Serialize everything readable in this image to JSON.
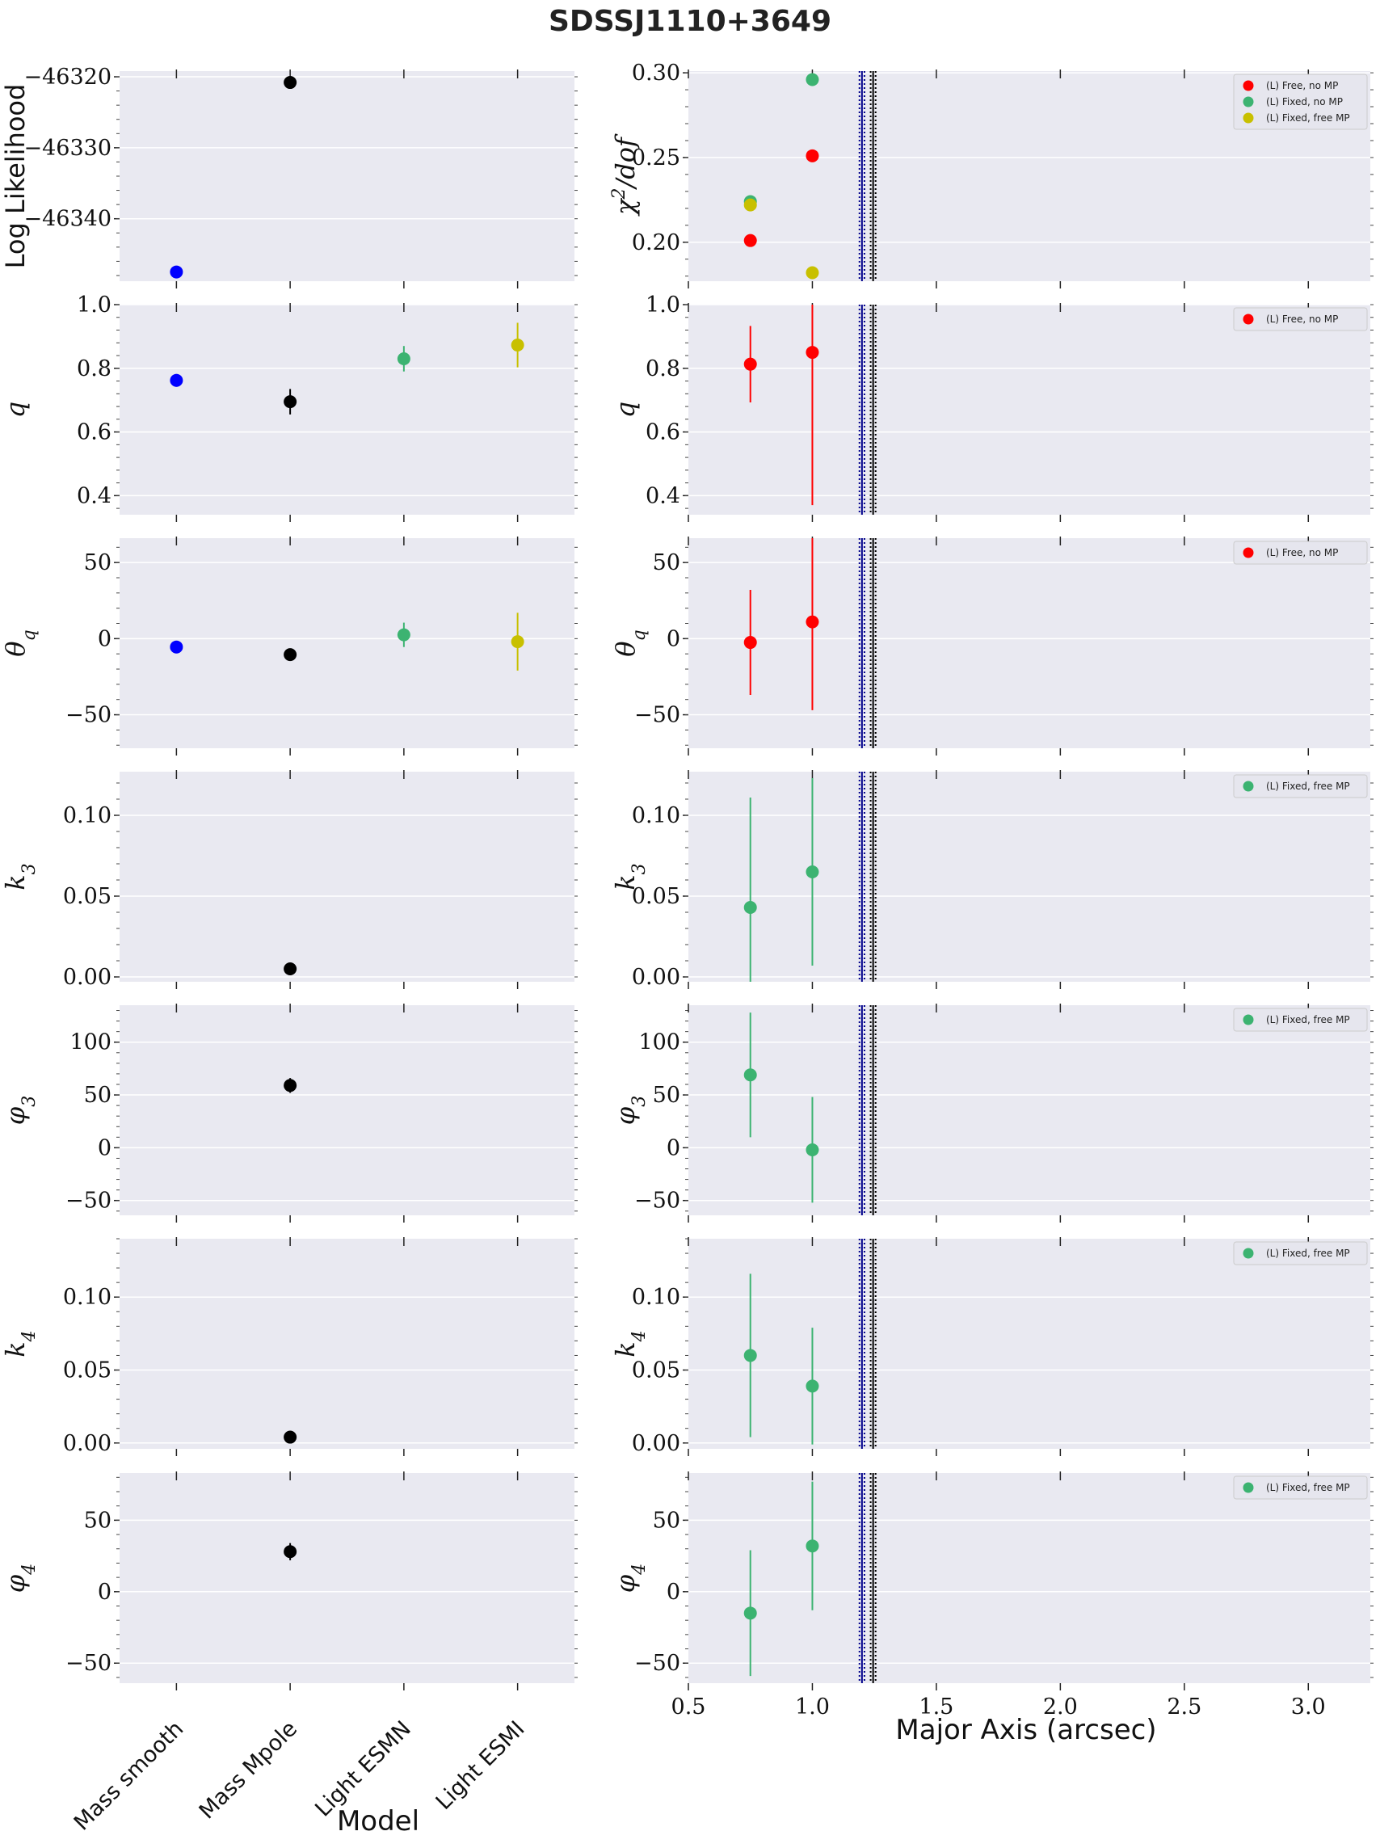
{
  "figure": {
    "title": "SDSSJ1110+3649",
    "left_xlabel": "Model",
    "right_xlabel": "Major Axis (arcsec)"
  },
  "colors": {
    "mass_smooth": "#0000ff",
    "mass_mpole": "#000000",
    "light_esmn": "#3cb371",
    "light_esmi": "#c8c000",
    "free_no_mp": "#ff0000",
    "fixed_no_mp": "#3cb371",
    "fixed_free_mp": "#c8c000",
    "vline_blue": "#00008b",
    "vline_black": "#000000",
    "panel_bg": "#e9e9f1",
    "grid": "#ffffff"
  },
  "chart_data": [
    {
      "type": "scatter",
      "panel": "left-0",
      "ylabel": "Log Likelihood",
      "categories": [
        "Mass smooth",
        "Mass Mpole",
        "Light ESMN",
        "Light ESMI"
      ],
      "ylim": [
        -46348.8,
        -46319.2
      ],
      "yticks": [
        -46320,
        -46330,
        -46340
      ],
      "yticklabels": [
        "−46320",
        "−46330",
        "−46340"
      ],
      "series": [
        {
          "key": "mass_smooth",
          "points": [
            {
              "x": 0,
              "y": -46347.5,
              "err": 0
            }
          ]
        },
        {
          "key": "mass_mpole",
          "points": [
            {
              "x": 1,
              "y": -46320.8,
              "err": 0
            }
          ]
        }
      ]
    },
    {
      "type": "scatter",
      "panel": "left-1",
      "ylabel": "q",
      "categories": [
        "Mass smooth",
        "Mass Mpole",
        "Light ESMN",
        "Light ESMI"
      ],
      "ylim": [
        0.34,
        1.0
      ],
      "yticks": [
        0.4,
        0.6,
        0.8,
        1.0
      ],
      "yticklabels": [
        "0.4",
        "0.6",
        "0.8",
        "1.0"
      ],
      "series": [
        {
          "key": "mass_smooth",
          "points": [
            {
              "x": 0,
              "y": 0.762,
              "err": 0.02
            }
          ]
        },
        {
          "key": "mass_mpole",
          "points": [
            {
              "x": 1,
              "y": 0.695,
              "err": 0.04
            }
          ]
        },
        {
          "key": "light_esmn",
          "points": [
            {
              "x": 2,
              "y": 0.83,
              "err": 0.04
            }
          ]
        },
        {
          "key": "light_esmi",
          "points": [
            {
              "x": 3,
              "y": 0.873,
              "err": 0.07
            }
          ]
        }
      ]
    },
    {
      "type": "scatter",
      "panel": "left-2",
      "ylabel": "θq",
      "categories": [
        "Mass smooth",
        "Mass Mpole",
        "Light ESMN",
        "Light ESMI"
      ],
      "ylim": [
        -72,
        66
      ],
      "yticks": [
        50,
        0,
        -50
      ],
      "yticklabels": [
        "50",
        "0",
        "−50"
      ],
      "series": [
        {
          "key": "mass_smooth",
          "points": [
            {
              "x": 0,
              "y": -5.5,
              "err": 2
            }
          ]
        },
        {
          "key": "mass_mpole",
          "points": [
            {
              "x": 1,
              "y": -10.5,
              "err": 2
            }
          ]
        },
        {
          "key": "light_esmn",
          "points": [
            {
              "x": 2,
              "y": 2.5,
              "err": 8
            }
          ]
        },
        {
          "key": "light_esmi",
          "points": [
            {
              "x": 3,
              "y": -2,
              "err": 19
            }
          ]
        }
      ]
    },
    {
      "type": "scatter",
      "panel": "left-3",
      "ylabel": "k3",
      "categories": [
        "Mass smooth",
        "Mass Mpole",
        "Light ESMN",
        "Light ESMI"
      ],
      "ylim": [
        -0.003,
        0.127
      ],
      "yticks": [
        0.0,
        0.05,
        0.1
      ],
      "yticklabels": [
        "0.00",
        "0.05",
        "0.10"
      ],
      "series": [
        {
          "key": "mass_mpole",
          "points": [
            {
              "x": 1,
              "y": 0.005,
              "err": 0.002
            }
          ]
        }
      ]
    },
    {
      "type": "scatter",
      "panel": "left-4",
      "ylabel": "φ3",
      "categories": [
        "Mass smooth",
        "Mass Mpole",
        "Light ESMN",
        "Light ESMI"
      ],
      "ylim": [
        -64,
        135
      ],
      "yticks": [
        100,
        50,
        0,
        -50
      ],
      "yticklabels": [
        "100",
        "50",
        "0",
        "−50"
      ],
      "series": [
        {
          "key": "mass_mpole",
          "points": [
            {
              "x": 1,
              "y": 59,
              "err": 7
            }
          ]
        }
      ]
    },
    {
      "type": "scatter",
      "panel": "left-5",
      "ylabel": "k4",
      "categories": [
        "Mass smooth",
        "Mass Mpole",
        "Light ESMN",
        "Light ESMI"
      ],
      "ylim": [
        -0.004,
        0.14
      ],
      "yticks": [
        0.0,
        0.05,
        0.1
      ],
      "yticklabels": [
        "0.00",
        "0.05",
        "0.10"
      ],
      "series": [
        {
          "key": "mass_mpole",
          "points": [
            {
              "x": 1,
              "y": 0.004,
              "err": 0.002
            }
          ]
        }
      ]
    },
    {
      "type": "scatter",
      "panel": "left-6",
      "ylabel": "φ4",
      "categories": [
        "Mass smooth",
        "Mass Mpole",
        "Light ESMN",
        "Light ESMI"
      ],
      "ylim": [
        -64,
        83
      ],
      "yticks": [
        50,
        0,
        -50
      ],
      "yticklabels": [
        "50",
        "0",
        "−50"
      ],
      "series": [
        {
          "key": "mass_mpole",
          "points": [
            {
              "x": 1,
              "y": 28,
              "err": 6
            }
          ]
        }
      ]
    },
    {
      "type": "scatter",
      "panel": "right-0",
      "ylabel": "χ²/dof",
      "xlim": [
        0.5,
        3.25
      ],
      "xticks": [
        0.5,
        1.0,
        1.5,
        2.0,
        2.5,
        3.0
      ],
      "xticklabels": [
        "0.5",
        "1.0",
        "1.5",
        "2.0",
        "2.5",
        "3.0"
      ],
      "ylim": [
        0.177,
        0.301
      ],
      "yticks": [
        0.2,
        0.25,
        0.3
      ],
      "yticklabels": [
        "0.20",
        "0.25",
        "0.30"
      ],
      "vlines": [
        {
          "x": 1.19,
          "color": "vline_blue",
          "style": "dotted"
        },
        {
          "x": 1.2,
          "color": "vline_blue",
          "style": "solid"
        },
        {
          "x": 1.21,
          "color": "vline_blue",
          "style": "dotted"
        },
        {
          "x": 1.235,
          "color": "vline_black",
          "style": "dotted"
        },
        {
          "x": 1.245,
          "color": "vline_black",
          "style": "solid"
        },
        {
          "x": 1.255,
          "color": "vline_black",
          "style": "dotted"
        }
      ],
      "legend_position": "top-right",
      "legend": [
        {
          "label": "(L) Free, no MP",
          "key": "free_no_mp"
        },
        {
          "label": "(L) Fixed, no MP",
          "key": "fixed_no_mp"
        },
        {
          "label": "(L) Fixed, free MP",
          "key": "fixed_free_mp"
        }
      ],
      "series": [
        {
          "key": "fixed_no_mp",
          "points": [
            {
              "x": 0.75,
              "y": 0.224,
              "err": 0
            },
            {
              "x": 1.0,
              "y": 0.296,
              "err": 0
            }
          ]
        },
        {
          "key": "fixed_free_mp",
          "points": [
            {
              "x": 0.75,
              "y": 0.222,
              "err": 0
            },
            {
              "x": 1.0,
              "y": 0.182,
              "err": 0
            }
          ]
        },
        {
          "key": "free_no_mp",
          "points": [
            {
              "x": 0.75,
              "y": 0.201,
              "err": 0
            },
            {
              "x": 1.0,
              "y": 0.251,
              "err": 0
            }
          ]
        }
      ]
    },
    {
      "type": "scatter",
      "panel": "right-1",
      "ylabel": "q",
      "xlim": [
        0.5,
        3.25
      ],
      "xticks": [
        0.5,
        1.0,
        1.5,
        2.0,
        2.5,
        3.0
      ],
      "xticklabels": [
        "0.5",
        "1.0",
        "1.5",
        "2.0",
        "2.5",
        "3.0"
      ],
      "ylim": [
        0.34,
        1.0
      ],
      "yticks": [
        0.4,
        0.6,
        0.8,
        1.0
      ],
      "yticklabels": [
        "0.4",
        "0.6",
        "0.8",
        "1.0"
      ],
      "vlines": [
        {
          "x": 1.19,
          "color": "vline_blue",
          "style": "dotted"
        },
        {
          "x": 1.2,
          "color": "vline_blue",
          "style": "solid"
        },
        {
          "x": 1.21,
          "color": "vline_blue",
          "style": "dotted"
        },
        {
          "x": 1.235,
          "color": "vline_black",
          "style": "dotted"
        },
        {
          "x": 1.245,
          "color": "vline_black",
          "style": "solid"
        },
        {
          "x": 1.255,
          "color": "vline_black",
          "style": "dotted"
        }
      ],
      "legend_position": "top-right",
      "legend": [
        {
          "label": "(L) Free, no MP",
          "key": "free_no_mp"
        }
      ],
      "series": [
        {
          "key": "free_no_mp",
          "points": [
            {
              "x": 0.75,
              "y": 0.813,
              "err": 0.12
            },
            {
              "x": 1.0,
              "y": 0.85,
              "err": 0.48
            }
          ]
        }
      ]
    },
    {
      "type": "scatter",
      "panel": "right-2",
      "ylabel": "θq",
      "xlim": [
        0.5,
        3.25
      ],
      "xticks": [
        0.5,
        1.0,
        1.5,
        2.0,
        2.5,
        3.0
      ],
      "xticklabels": [
        "0.5",
        "1.0",
        "1.5",
        "2.0",
        "2.5",
        "3.0"
      ],
      "ylim": [
        -72,
        66
      ],
      "yticks": [
        50,
        0,
        -50
      ],
      "yticklabels": [
        "50",
        "0",
        "−50"
      ],
      "vlines": [
        {
          "x": 1.19,
          "color": "vline_blue",
          "style": "dotted"
        },
        {
          "x": 1.2,
          "color": "vline_blue",
          "style": "solid"
        },
        {
          "x": 1.21,
          "color": "vline_blue",
          "style": "dotted"
        },
        {
          "x": 1.235,
          "color": "vline_black",
          "style": "dotted"
        },
        {
          "x": 1.245,
          "color": "vline_black",
          "style": "solid"
        },
        {
          "x": 1.255,
          "color": "vline_black",
          "style": "dotted"
        }
      ],
      "legend_position": "top-right",
      "legend": [
        {
          "label": "(L) Free, no MP",
          "key": "free_no_mp"
        }
      ],
      "series": [
        {
          "key": "free_no_mp",
          "points": [
            {
              "x": 0.75,
              "y": -2.5,
              "err": 34.5
            },
            {
              "x": 1.0,
              "y": 11,
              "err": 58
            }
          ]
        }
      ]
    },
    {
      "type": "scatter",
      "panel": "right-3",
      "ylabel": "k3",
      "xlim": [
        0.5,
        3.25
      ],
      "xticks": [
        0.5,
        1.0,
        1.5,
        2.0,
        2.5,
        3.0
      ],
      "xticklabels": [
        "0.5",
        "1.0",
        "1.5",
        "2.0",
        "2.5",
        "3.0"
      ],
      "ylim": [
        -0.003,
        0.127
      ],
      "yticks": [
        0.0,
        0.05,
        0.1
      ],
      "yticklabels": [
        "0.00",
        "0.05",
        "0.10"
      ],
      "vlines": [
        {
          "x": 1.19,
          "color": "vline_blue",
          "style": "dotted"
        },
        {
          "x": 1.2,
          "color": "vline_blue",
          "style": "solid"
        },
        {
          "x": 1.21,
          "color": "vline_blue",
          "style": "dotted"
        },
        {
          "x": 1.235,
          "color": "vline_black",
          "style": "dotted"
        },
        {
          "x": 1.245,
          "color": "vline_black",
          "style": "solid"
        },
        {
          "x": 1.255,
          "color": "vline_black",
          "style": "dotted"
        }
      ],
      "legend_position": "top-right",
      "legend": [
        {
          "label": "(L) Fixed, free MP",
          "key": "fixed_no_mp"
        }
      ],
      "series": [
        {
          "key": "fixed_no_mp",
          "points": [
            {
              "x": 0.75,
              "y": 0.043,
              "err": 0.068
            },
            {
              "x": 1.0,
              "y": 0.065,
              "err": 0.058
            }
          ]
        }
      ]
    },
    {
      "type": "scatter",
      "panel": "right-4",
      "ylabel": "φ3",
      "xlim": [
        0.5,
        3.25
      ],
      "xticks": [
        0.5,
        1.0,
        1.5,
        2.0,
        2.5,
        3.0
      ],
      "xticklabels": [
        "0.5",
        "1.0",
        "1.5",
        "2.0",
        "2.5",
        "3.0"
      ],
      "ylim": [
        -64,
        135
      ],
      "yticks": [
        100,
        50,
        0,
        -50
      ],
      "yticklabels": [
        "100",
        "50",
        "0",
        "−50"
      ],
      "vlines": [
        {
          "x": 1.19,
          "color": "vline_blue",
          "style": "dotted"
        },
        {
          "x": 1.2,
          "color": "vline_blue",
          "style": "solid"
        },
        {
          "x": 1.21,
          "color": "vline_blue",
          "style": "dotted"
        },
        {
          "x": 1.235,
          "color": "vline_black",
          "style": "dotted"
        },
        {
          "x": 1.245,
          "color": "vline_black",
          "style": "solid"
        },
        {
          "x": 1.255,
          "color": "vline_black",
          "style": "dotted"
        }
      ],
      "legend_position": "top-right",
      "legend": [
        {
          "label": "(L) Fixed, free MP",
          "key": "fixed_no_mp"
        }
      ],
      "series": [
        {
          "key": "fixed_no_mp",
          "points": [
            {
              "x": 0.75,
              "y": 69,
              "err": 59
            },
            {
              "x": 1.0,
              "y": -2,
              "err": 50
            }
          ]
        }
      ]
    },
    {
      "type": "scatter",
      "panel": "right-5",
      "ylabel": "k4",
      "xlim": [
        0.5,
        3.25
      ],
      "xticks": [
        0.5,
        1.0,
        1.5,
        2.0,
        2.5,
        3.0
      ],
      "xticklabels": [
        "0.5",
        "1.0",
        "1.5",
        "2.0",
        "2.5",
        "3.0"
      ],
      "ylim": [
        -0.004,
        0.14
      ],
      "yticks": [
        0.0,
        0.05,
        0.1
      ],
      "yticklabels": [
        "0.00",
        "0.05",
        "0.10"
      ],
      "vlines": [
        {
          "x": 1.19,
          "color": "vline_blue",
          "style": "dotted"
        },
        {
          "x": 1.2,
          "color": "vline_blue",
          "style": "solid"
        },
        {
          "x": 1.21,
          "color": "vline_blue",
          "style": "dotted"
        },
        {
          "x": 1.235,
          "color": "vline_black",
          "style": "dotted"
        },
        {
          "x": 1.245,
          "color": "vline_black",
          "style": "solid"
        },
        {
          "x": 1.255,
          "color": "vline_black",
          "style": "dotted"
        }
      ],
      "legend_position": "top-right",
      "legend": [
        {
          "label": "(L) Fixed, free MP",
          "key": "fixed_no_mp"
        }
      ],
      "series": [
        {
          "key": "fixed_no_mp",
          "points": [
            {
              "x": 0.75,
              "y": 0.06,
              "err": 0.056
            },
            {
              "x": 1.0,
              "y": 0.039,
              "err": 0.04
            }
          ]
        }
      ]
    },
    {
      "type": "scatter",
      "panel": "right-6",
      "ylabel": "φ4",
      "xlim": [
        0.5,
        3.25
      ],
      "xticks": [
        0.5,
        1.0,
        1.5,
        2.0,
        2.5,
        3.0
      ],
      "xticklabels": [
        "0.5",
        "1.0",
        "1.5",
        "2.0",
        "2.5",
        "3.0"
      ],
      "ylim": [
        -64,
        83
      ],
      "yticks": [
        50,
        0,
        -50
      ],
      "yticklabels": [
        "50",
        "0",
        "−50"
      ],
      "vlines": [
        {
          "x": 1.19,
          "color": "vline_blue",
          "style": "dotted"
        },
        {
          "x": 1.2,
          "color": "vline_blue",
          "style": "solid"
        },
        {
          "x": 1.21,
          "color": "vline_blue",
          "style": "dotted"
        },
        {
          "x": 1.235,
          "color": "vline_black",
          "style": "dotted"
        },
        {
          "x": 1.245,
          "color": "vline_black",
          "style": "solid"
        },
        {
          "x": 1.255,
          "color": "vline_black",
          "style": "dotted"
        }
      ],
      "legend_position": "top-right",
      "legend": [
        {
          "label": "(L) Fixed, free MP",
          "key": "fixed_no_mp"
        }
      ],
      "series": [
        {
          "key": "fixed_no_mp",
          "points": [
            {
              "x": 0.75,
              "y": -15,
              "err": 44
            },
            {
              "x": 1.0,
              "y": 32,
              "err": 45
            }
          ]
        }
      ]
    }
  ]
}
